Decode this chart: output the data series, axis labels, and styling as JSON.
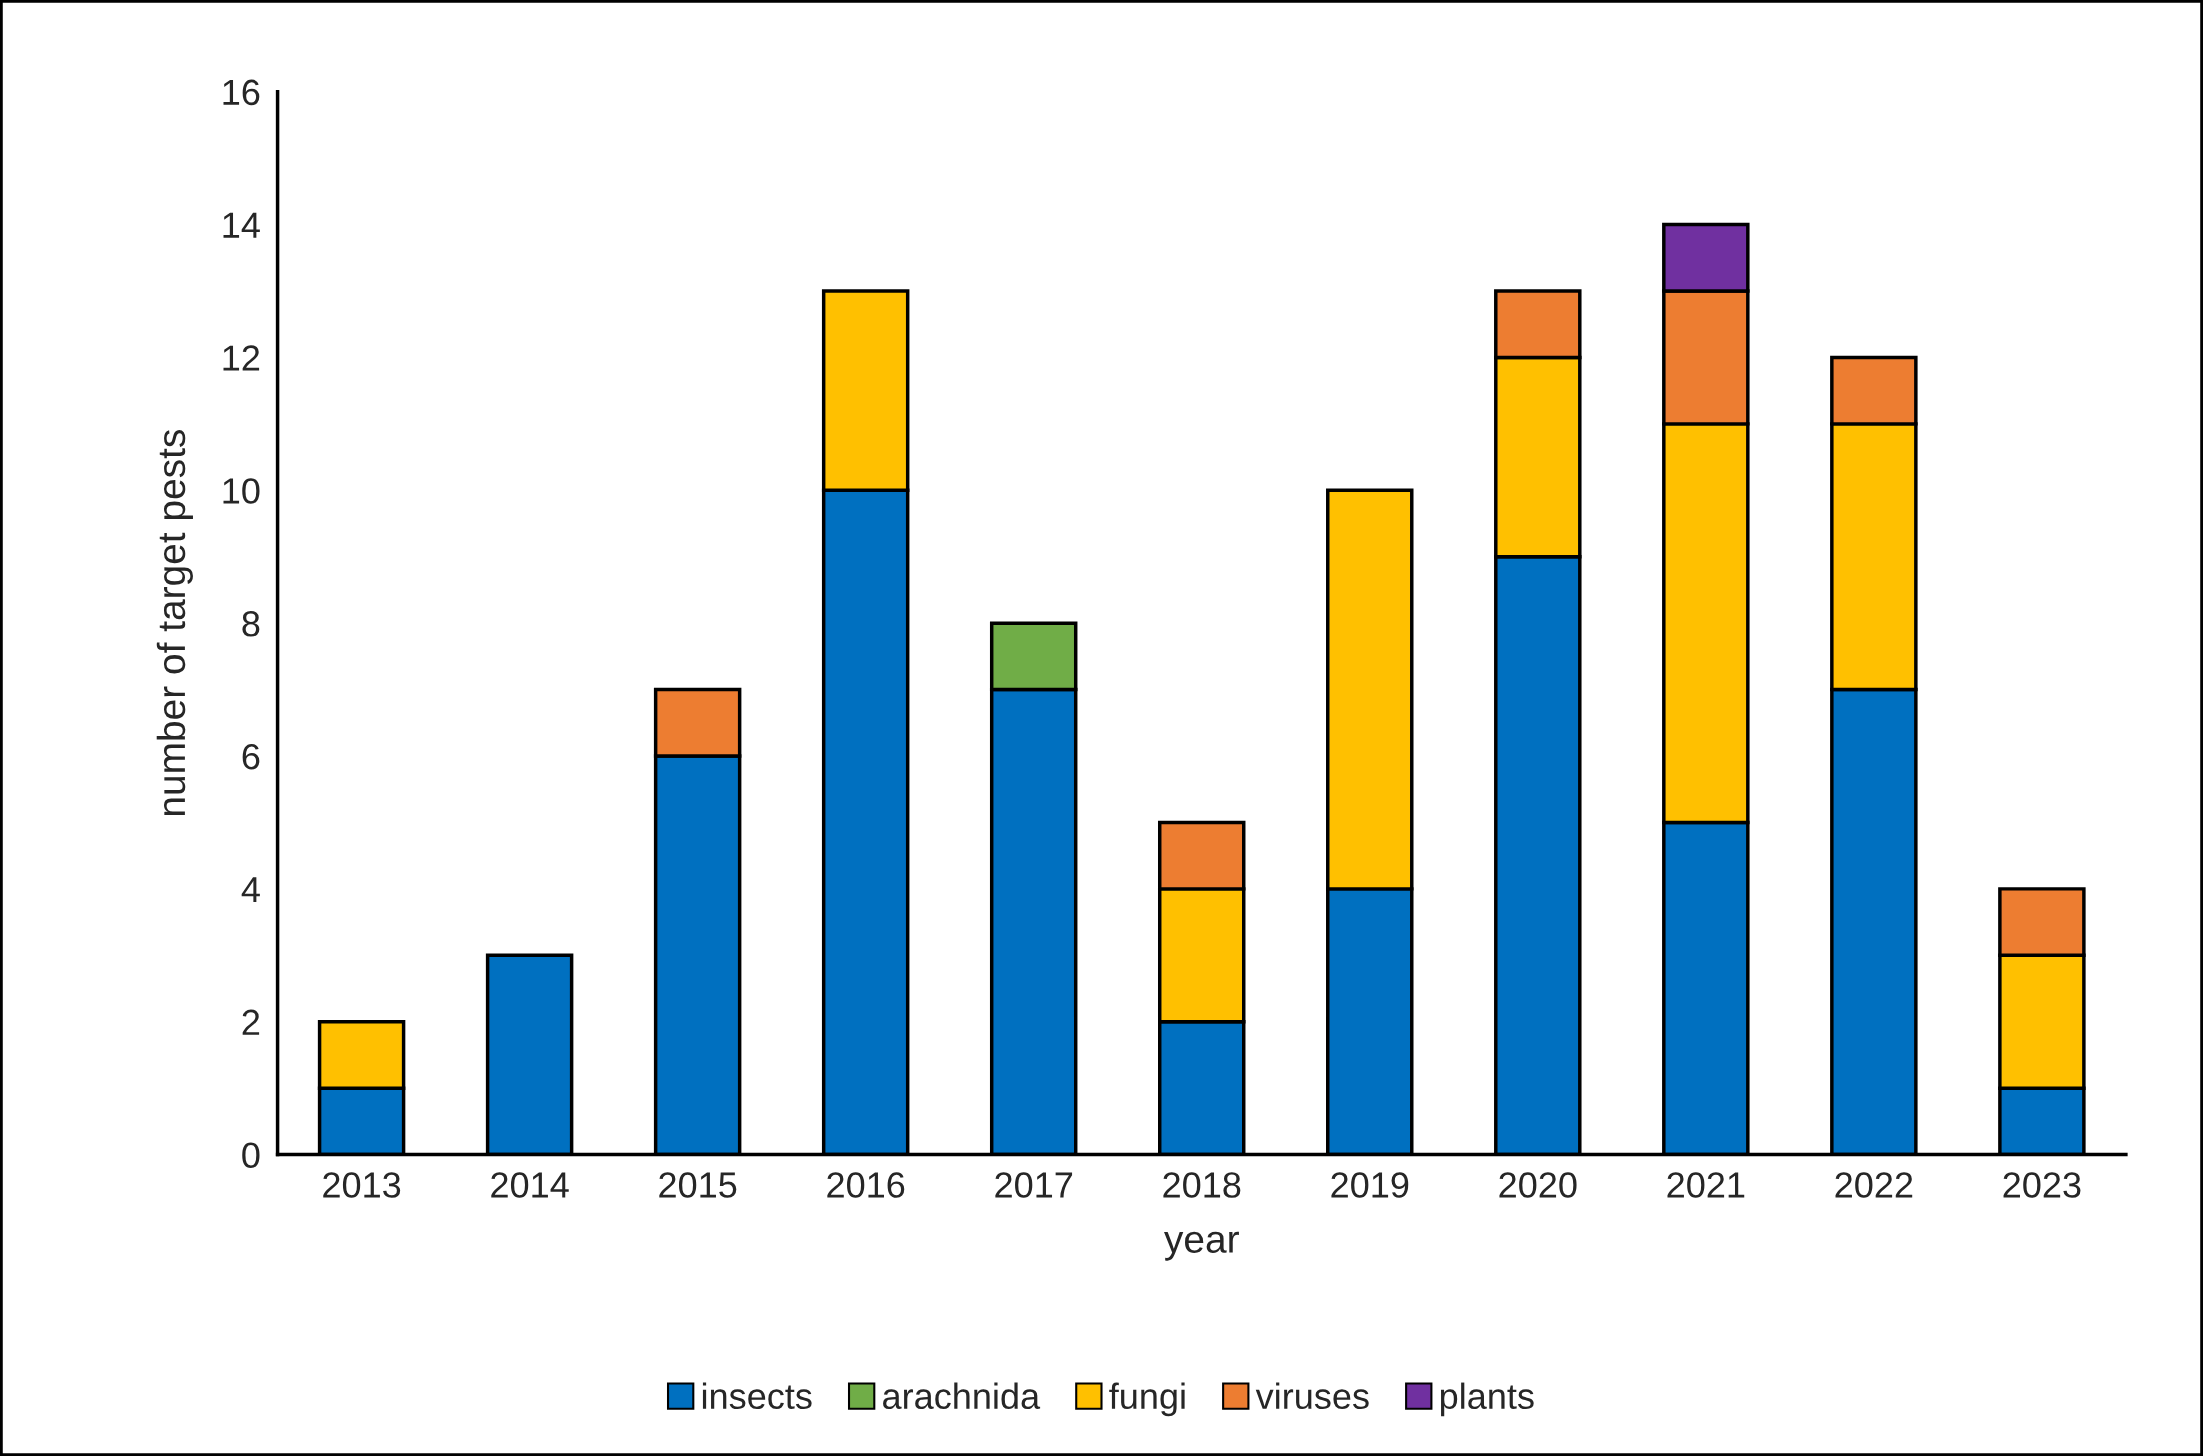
{
  "chart_data": {
    "type": "bar",
    "stacked": true,
    "xlabel": "year",
    "ylabel": "number of target pests",
    "categories": [
      "2013",
      "2014",
      "2015",
      "2016",
      "2017",
      "2018",
      "2019",
      "2020",
      "2021",
      "2022",
      "2023"
    ],
    "series": [
      {
        "name": "insects",
        "color": "#0070c0",
        "values": [
          1,
          3,
          6,
          10,
          7,
          2,
          4,
          9,
          5,
          7,
          1
        ]
      },
      {
        "name": "arachnida",
        "color": "#70ad47",
        "values": [
          null,
          null,
          null,
          null,
          1,
          null,
          null,
          null,
          null,
          null,
          null
        ]
      },
      {
        "name": "fungi",
        "color": "#ffc000",
        "values": [
          1,
          null,
          null,
          3,
          null,
          2,
          6,
          3,
          6,
          4,
          2
        ]
      },
      {
        "name": "viruses",
        "color": "#ed7d31",
        "values": [
          null,
          null,
          1,
          null,
          null,
          1,
          null,
          1,
          2,
          1,
          1
        ]
      },
      {
        "name": "plants",
        "color": "#7030a0",
        "values": [
          null,
          null,
          null,
          null,
          null,
          null,
          null,
          null,
          1,
          null,
          null
        ]
      }
    ],
    "ylim": [
      0,
      16
    ],
    "yticks": [
      0,
      2,
      4,
      6,
      8,
      10,
      12,
      14,
      16
    ],
    "grid": false,
    "legend": "bottom"
  }
}
